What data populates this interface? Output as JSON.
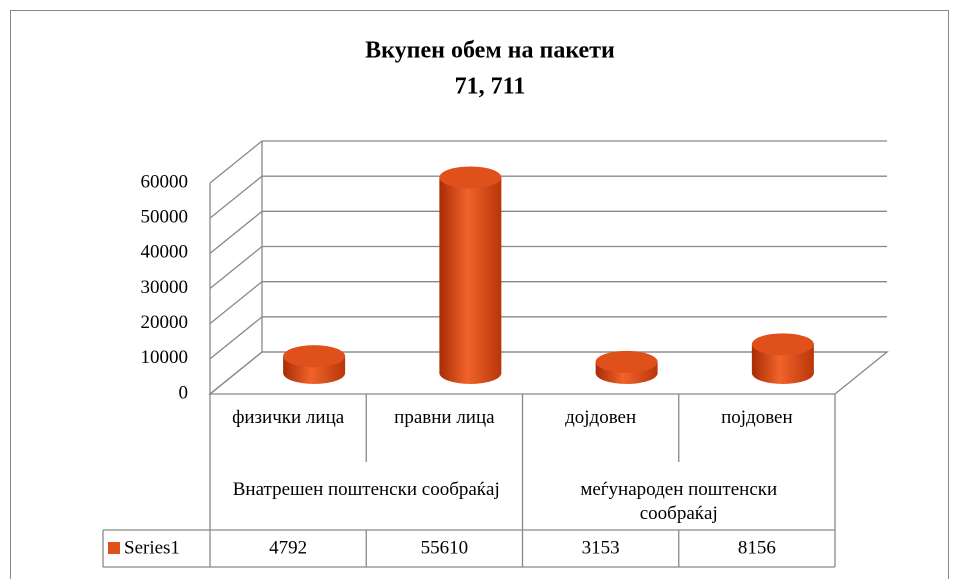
{
  "chart_data": {
    "type": "bar3d",
    "title": "Вкупен обем на пакети",
    "subtitle": "71, 711",
    "categories": [
      "физички лица",
      "правни лица",
      "дојдовен",
      "појдовен"
    ],
    "category_groups": [
      "Внатрешен поштенски сообраќај",
      "меѓународен поштенски сообраќај"
    ],
    "series": [
      {
        "name": "Series1",
        "color": "#e0501a",
        "values": [
          4792,
          55610,
          3153,
          8156
        ]
      }
    ],
    "ylim": [
      0,
      60000
    ],
    "yticks": [
      0,
      10000,
      20000,
      30000,
      40000,
      50000,
      60000
    ],
    "grid": true
  }
}
